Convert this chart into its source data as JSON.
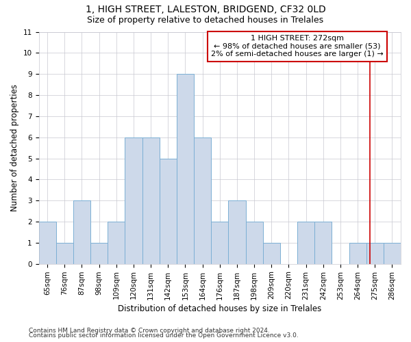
{
  "title": "1, HIGH STREET, LALESTON, BRIDGEND, CF32 0LD",
  "subtitle": "Size of property relative to detached houses in Trelales",
  "xlabel": "Distribution of detached houses by size in Trelales",
  "ylabel": "Number of detached properties",
  "categories": [
    "65sqm",
    "76sqm",
    "87sqm",
    "98sqm",
    "109sqm",
    "120sqm",
    "131sqm",
    "142sqm",
    "153sqm",
    "164sqm",
    "176sqm",
    "187sqm",
    "198sqm",
    "209sqm",
    "220sqm",
    "231sqm",
    "242sqm",
    "253sqm",
    "264sqm",
    "275sqm",
    "286sqm"
  ],
  "values": [
    2,
    1,
    3,
    1,
    2,
    6,
    6,
    5,
    9,
    6,
    2,
    3,
    2,
    1,
    0,
    2,
    2,
    0,
    1,
    1,
    1
  ],
  "bar_color": "#cdd9ea",
  "bar_edge_color": "#7bafd4",
  "annotation_box_text": "1 HIGH STREET: 272sqm\n← 98% of detached houses are smaller (53)\n2% of semi-detached houses are larger (1) →",
  "annotation_box_color": "#ffffff",
  "annotation_box_edge_color": "#cc0000",
  "vline_color": "#cc0000",
  "vline_x_index": 19.27,
  "ylim": [
    0,
    11
  ],
  "yticks": [
    0,
    1,
    2,
    3,
    4,
    5,
    6,
    7,
    8,
    9,
    10,
    11
  ],
  "footer_line1": "Contains HM Land Registry data © Crown copyright and database right 2024.",
  "footer_line2": "Contains public sector information licensed under the Open Government Licence v3.0.",
  "background_color": "#ffffff",
  "grid_color": "#c8c8d0",
  "title_fontsize": 10,
  "subtitle_fontsize": 9,
  "axis_label_fontsize": 8.5,
  "tick_fontsize": 7.5,
  "annotation_fontsize": 8,
  "footer_fontsize": 6.5
}
